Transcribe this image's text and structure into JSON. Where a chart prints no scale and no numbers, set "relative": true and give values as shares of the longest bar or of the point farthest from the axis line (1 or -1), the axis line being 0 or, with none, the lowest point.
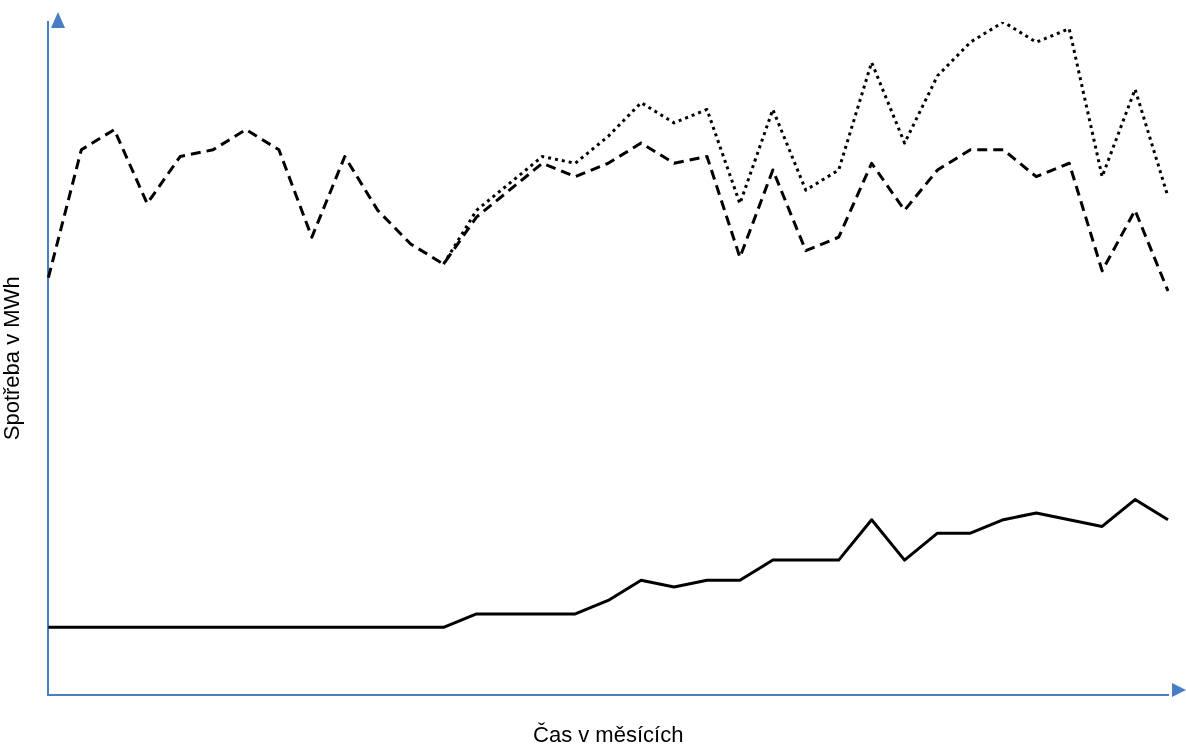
{
  "chart_data": {
    "type": "line",
    "xlabel": "Čas v měsících",
    "ylabel": "Spotřeba v MWh",
    "relative": true,
    "legend": false,
    "marker": "none",
    "grid": false,
    "categories": [
      null,
      null,
      null,
      null,
      null,
      null,
      null,
      null,
      null,
      null,
      null,
      null,
      null,
      null,
      null,
      null,
      null,
      null,
      null,
      null,
      null,
      null,
      null,
      null,
      null,
      null,
      null,
      null,
      null,
      null,
      null,
      null,
      null,
      null,
      null
    ],
    "series": [
      {
        "color": "#000000",
        "line_style": "dashed",
        "values": [
          0.62,
          0.81,
          0.84,
          0.73,
          0.8,
          0.81,
          0.84,
          0.81,
          0.68,
          0.8,
          0.72,
          0.67,
          0.64,
          0.71,
          0.75,
          0.79,
          0.77,
          0.79,
          0.82,
          0.79,
          0.8,
          0.65,
          0.78,
          0.66,
          0.68,
          0.79,
          0.72,
          0.78,
          0.81,
          0.81,
          0.77,
          0.79,
          0.63,
          0.72,
          0.6
        ]
      },
      {
        "color": "#000000",
        "line_style": "dotted",
        "values": [
          null,
          null,
          null,
          null,
          null,
          null,
          null,
          null,
          null,
          null,
          null,
          null,
          0.64,
          0.72,
          0.76,
          0.8,
          0.79,
          0.83,
          0.88,
          0.85,
          0.87,
          0.73,
          0.87,
          0.75,
          0.78,
          0.94,
          0.82,
          0.92,
          0.97,
          1.0,
          0.97,
          0.99,
          0.77,
          0.9,
          0.74
        ]
      },
      {
        "color": "#000000",
        "line_style": "solid",
        "values": [
          0.1,
          0.1,
          0.1,
          0.1,
          0.1,
          0.1,
          0.1,
          0.1,
          0.1,
          0.1,
          0.1,
          0.1,
          0.1,
          0.12,
          0.12,
          0.12,
          0.12,
          0.14,
          0.17,
          0.16,
          0.17,
          0.17,
          0.2,
          0.2,
          0.2,
          0.26,
          0.2,
          0.24,
          0.24,
          0.26,
          0.27,
          0.26,
          0.25,
          0.29,
          0.26
        ]
      }
    ]
  }
}
